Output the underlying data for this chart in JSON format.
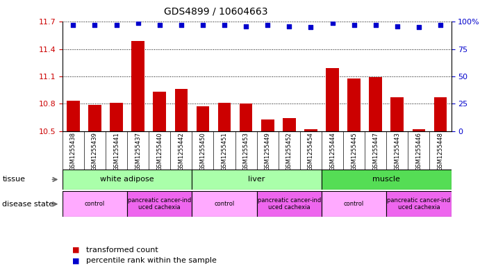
{
  "title": "GDS4899 / 10604663",
  "samples": [
    "GSM1255438",
    "GSM1255439",
    "GSM1255441",
    "GSM1255437",
    "GSM1255440",
    "GSM1255442",
    "GSM1255450",
    "GSM1255451",
    "GSM1255453",
    "GSM1255449",
    "GSM1255452",
    "GSM1255454",
    "GSM1255444",
    "GSM1255445",
    "GSM1255447",
    "GSM1255443",
    "GSM1255446",
    "GSM1255448"
  ],
  "bar_values": [
    10.83,
    10.79,
    10.81,
    11.49,
    10.93,
    10.96,
    10.77,
    10.81,
    10.8,
    10.63,
    10.64,
    10.52,
    11.19,
    11.08,
    11.09,
    10.87,
    10.52,
    10.87
  ],
  "percentile_values": [
    97,
    97,
    97,
    99,
    97,
    97,
    97,
    97,
    96,
    97,
    96,
    95,
    99,
    97,
    97,
    96,
    95,
    97
  ],
  "bar_color": "#cc0000",
  "dot_color": "#0000cc",
  "ylim_left": [
    10.5,
    11.7
  ],
  "ylim_right": [
    0,
    100
  ],
  "yticks_left": [
    10.5,
    10.8,
    11.1,
    11.4,
    11.7
  ],
  "yticks_right": [
    0,
    25,
    50,
    75,
    100
  ],
  "tissue_groups": [
    {
      "label": "white adipose",
      "start": 0,
      "end": 6,
      "color": "#aaffaa"
    },
    {
      "label": "liver",
      "start": 6,
      "end": 12,
      "color": "#aaffaa"
    },
    {
      "label": "muscle",
      "start": 12,
      "end": 18,
      "color": "#55dd55"
    }
  ],
  "disease_groups": [
    {
      "label": "control",
      "start": 0,
      "end": 3,
      "color": "#ffaaff"
    },
    {
      "label": "pancreatic cancer-ind\nuced cachexia",
      "start": 3,
      "end": 6,
      "color": "#ee66ee"
    },
    {
      "label": "control",
      "start": 6,
      "end": 9,
      "color": "#ffaaff"
    },
    {
      "label": "pancreatic cancer-ind\nuced cachexia",
      "start": 9,
      "end": 12,
      "color": "#ee66ee"
    },
    {
      "label": "control",
      "start": 12,
      "end": 15,
      "color": "#ffaaff"
    },
    {
      "label": "pancreatic cancer-ind\nuced cachexia",
      "start": 15,
      "end": 18,
      "color": "#ee66ee"
    }
  ],
  "tissue_label": "tissue",
  "disease_label": "disease state",
  "legend_bar": "transformed count",
  "legend_dot": "percentile rank within the sample",
  "bar_color_label": "#cc0000",
  "dot_color_label": "#0000cc",
  "tick_area_bg": "#dddddd"
}
